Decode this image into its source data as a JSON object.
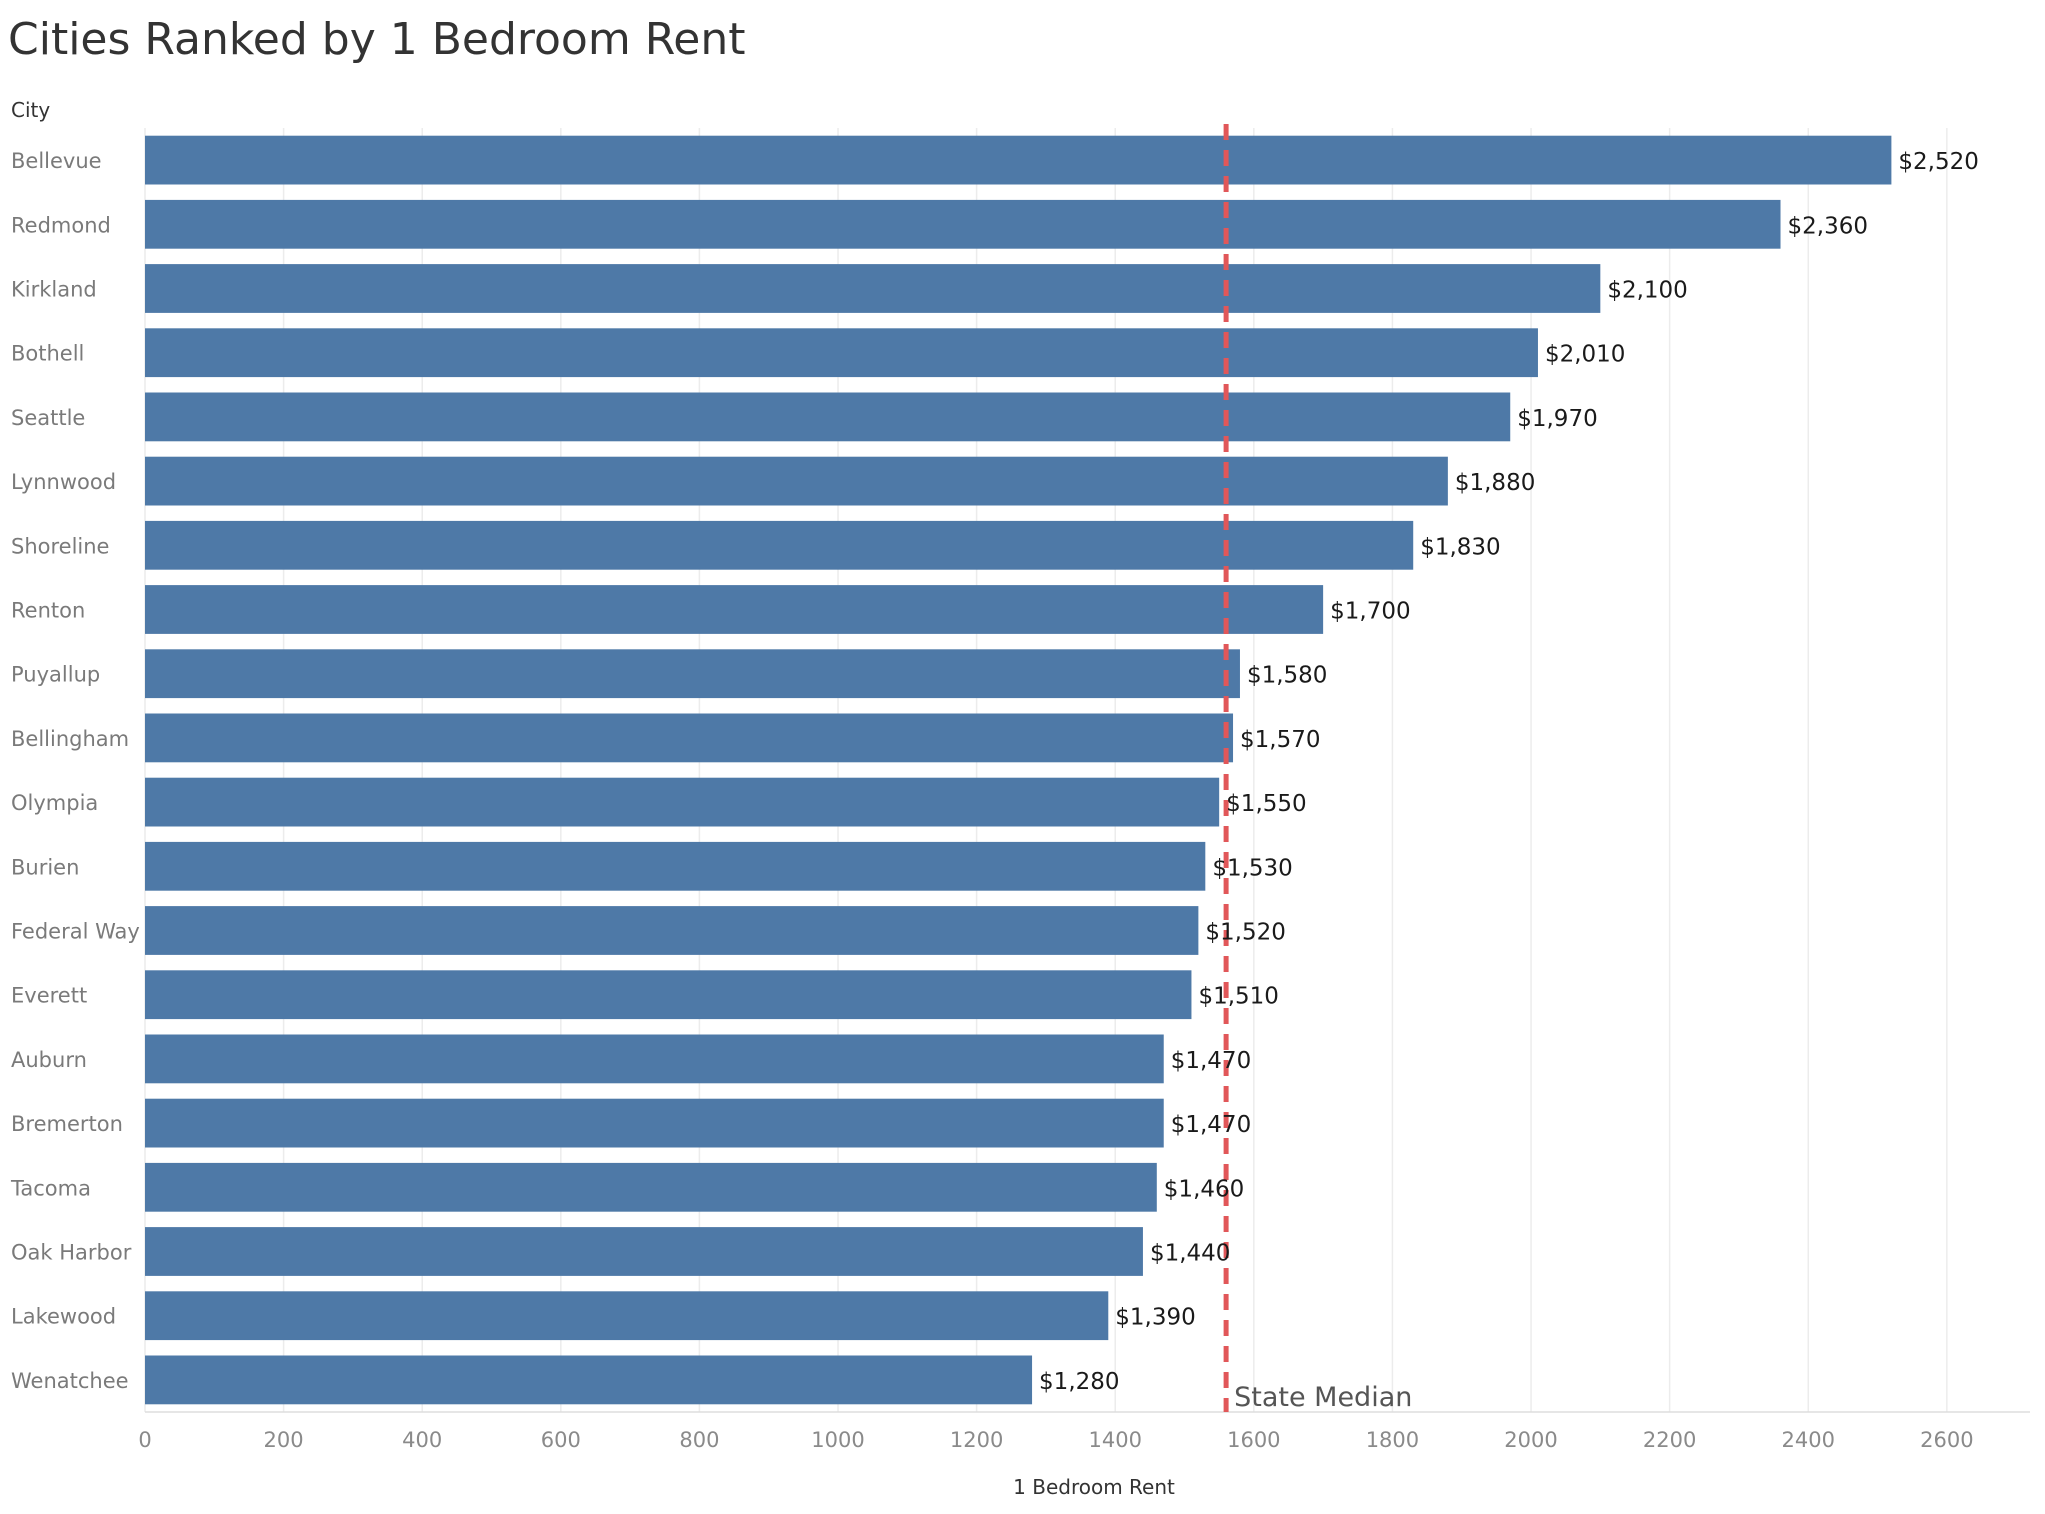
{
  "chart_data": {
    "type": "bar",
    "orientation": "horizontal",
    "title": "Cities Ranked by 1 Bedroom Rent",
    "ylabel": "City",
    "xlabel": "1 Bedroom Rent",
    "xlim": [
      0,
      2720
    ],
    "xticks": [
      0,
      200,
      400,
      600,
      800,
      1000,
      1200,
      1400,
      1600,
      1800,
      2000,
      2200,
      2400,
      2600
    ],
    "grid": true,
    "bar_color": "#4e79a7",
    "reference_line": {
      "label": "State Median",
      "value": 1560,
      "color": "#e15759",
      "style": "dashed"
    },
    "categories": [
      "Bellevue",
      "Redmond",
      "Kirkland",
      "Bothell",
      "Seattle",
      "Lynnwood",
      "Shoreline",
      "Renton",
      "Puyallup",
      "Bellingham",
      "Olympia",
      "Burien",
      "Federal Way",
      "Everett",
      "Auburn",
      "Bremerton",
      "Tacoma",
      "Oak Harbor",
      "Lakewood",
      "Wenatchee"
    ],
    "values": [
      2520,
      2360,
      2100,
      2010,
      1970,
      1880,
      1830,
      1700,
      1580,
      1570,
      1550,
      1530,
      1520,
      1510,
      1470,
      1470,
      1460,
      1440,
      1390,
      1280
    ],
    "value_labels": [
      "$2,520",
      "$2,360",
      "$2,100",
      "$2,010",
      "$1,970",
      "$1,880",
      "$1,830",
      "$1,700",
      "$1,580",
      "$1,570",
      "$1,550",
      "$1,530",
      "$1,520",
      "$1,510",
      "$1,470",
      "$1,470",
      "$1,460",
      "$1,440",
      "$1,390",
      "$1,280"
    ]
  }
}
